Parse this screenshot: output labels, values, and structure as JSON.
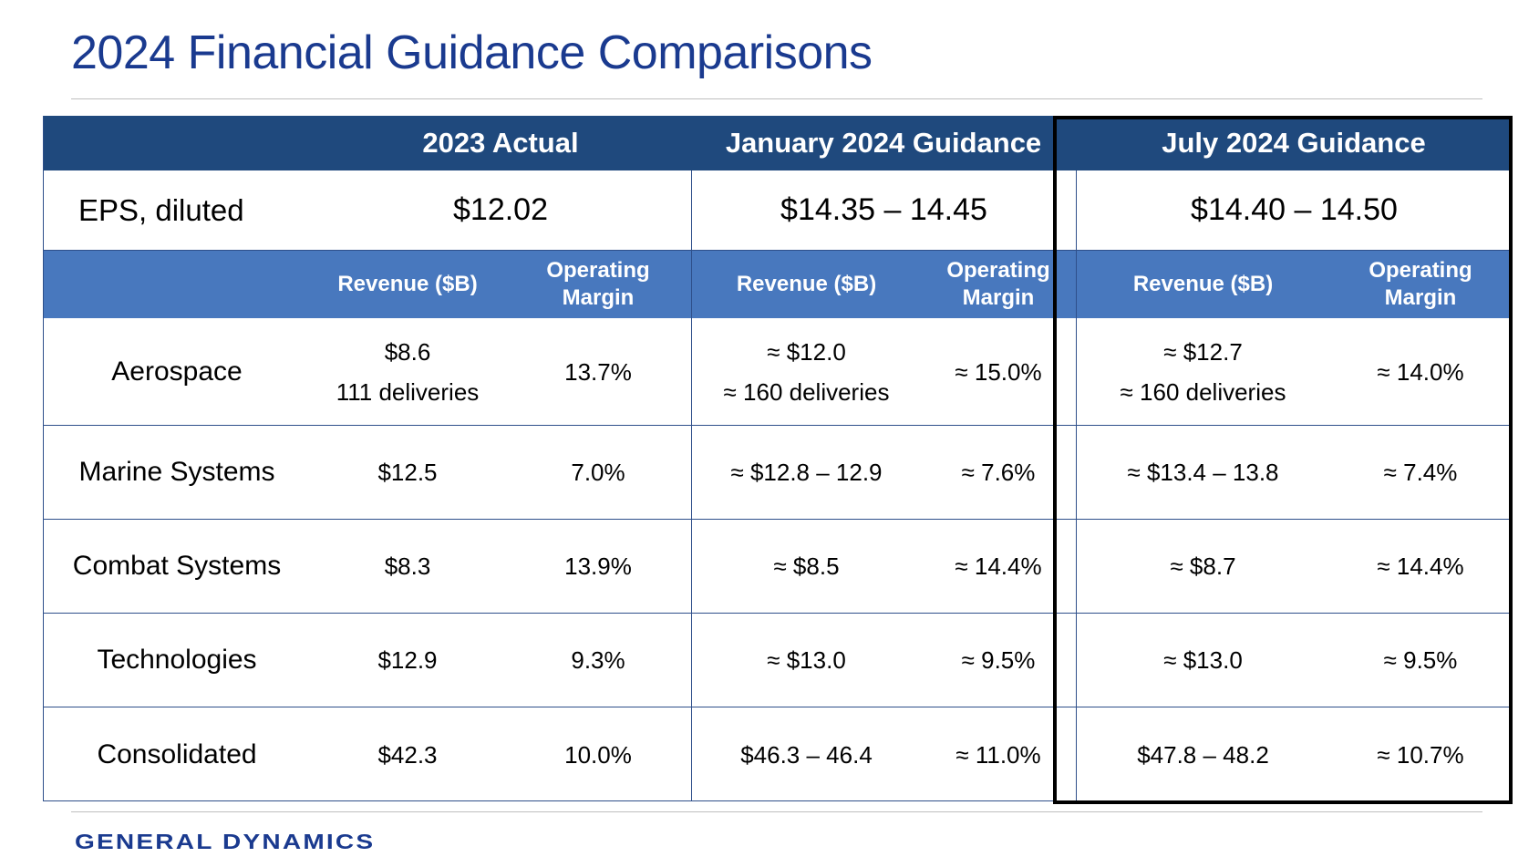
{
  "title": "2024 Financial Guidance Comparisons",
  "logo": "GENERAL DYNAMICS",
  "headers": {
    "col_2023": "2023 Actual",
    "col_jan": "January 2024 Guidance",
    "col_jul": "July 2024 Guidance"
  },
  "eps": {
    "label": "EPS, diluted",
    "actual_2023": "$12.02",
    "jan_2024": "$14.35 – 14.45",
    "jul_2024": "$14.40 – 14.50"
  },
  "subheaders": {
    "revenue": "Revenue ($B)",
    "margin_line1": "Operating",
    "margin_line2": "Margin"
  },
  "segments": [
    {
      "name": "Aerospace",
      "a23_rev": "$8.6",
      "a23_rev_note": "111 deliveries",
      "a23_margin": "13.7%",
      "jan_rev": "≈ $12.0",
      "jan_rev_note": "≈ 160 deliveries",
      "jan_margin": "≈ 15.0%",
      "jul_rev": "≈ $12.7",
      "jul_rev_note": "≈ 160 deliveries",
      "jul_margin": "≈ 14.0%"
    },
    {
      "name": "Marine Systems",
      "a23_rev": "$12.5",
      "a23_margin": "7.0%",
      "jan_rev": "≈ $12.8 – 12.9",
      "jan_margin": "≈ 7.6%",
      "jul_rev": "≈ $13.4 – 13.8",
      "jul_margin": "≈ 7.4%"
    },
    {
      "name": "Combat Systems",
      "a23_rev": "$8.3",
      "a23_margin": "13.9%",
      "jan_rev": "≈ $8.5",
      "jan_margin": "≈ 14.4%",
      "jul_rev": "≈ $8.7",
      "jul_margin": "≈ 14.4%"
    },
    {
      "name": "Technologies",
      "a23_rev": "$12.9",
      "a23_margin": "9.3%",
      "jan_rev": "≈ $13.0",
      "jan_margin": "≈ 9.5%",
      "jul_rev": "≈ $13.0",
      "jul_margin": "≈ 9.5%"
    },
    {
      "name": "Consolidated",
      "a23_rev": "$42.3",
      "a23_margin": "10.0%",
      "jan_rev": "$46.3 – 46.4",
      "jan_margin": "≈ 11.0%",
      "jul_rev": "$47.8 – 48.2",
      "jul_margin": "≈ 10.7%"
    }
  ],
  "colors": {
    "title": "#1a3a8f",
    "header_bg": "#1f497d",
    "subheader_bg": "#4878be",
    "grid_line": "#2e4f8a",
    "highlight_border": "#000000"
  }
}
